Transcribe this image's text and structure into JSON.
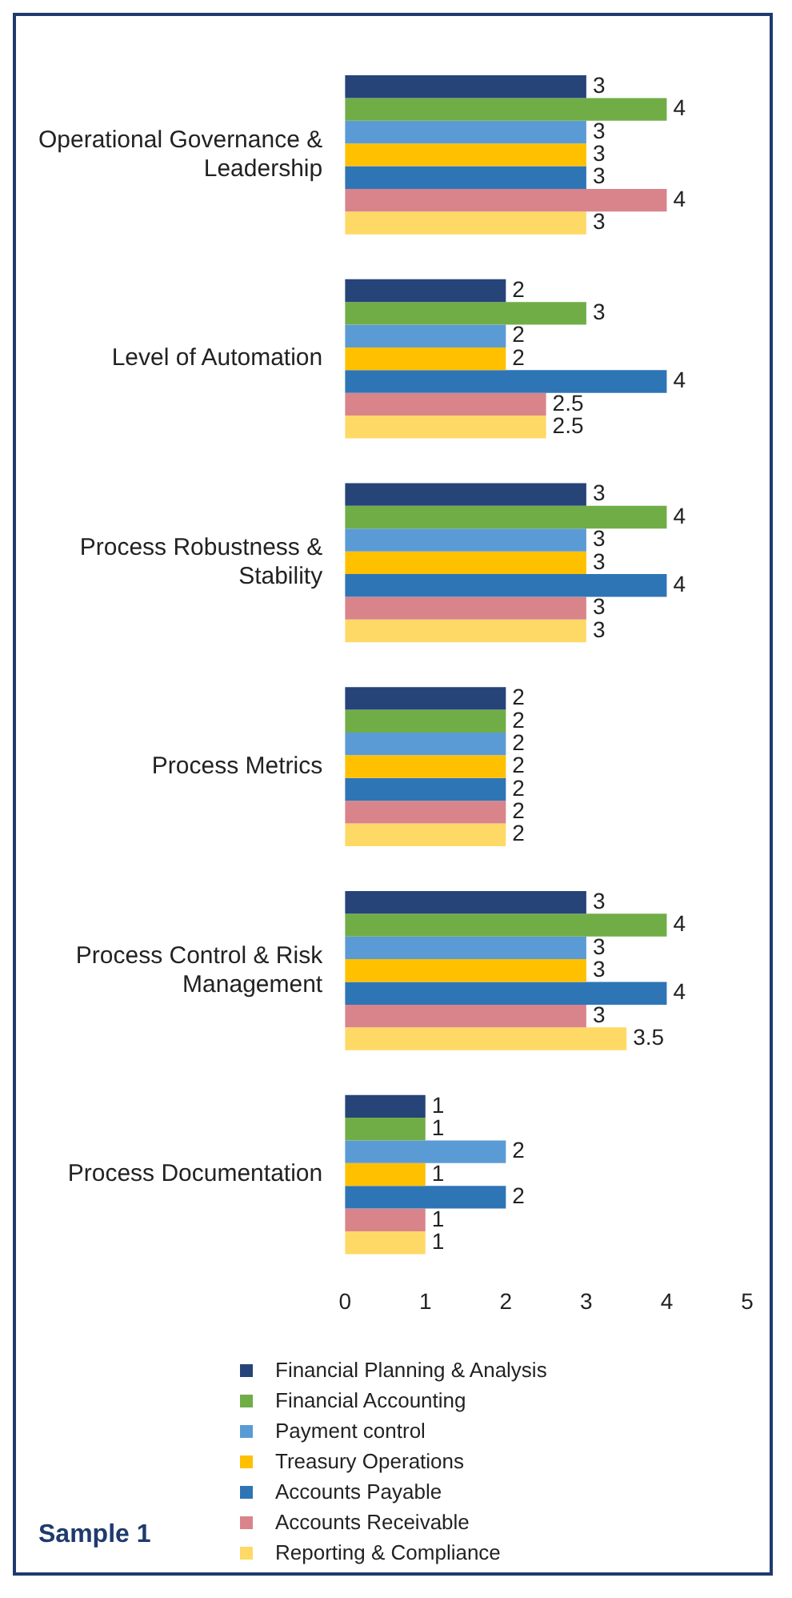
{
  "chart_data": {
    "type": "bar",
    "orientation": "horizontal",
    "categories": [
      "Operational Governance & Leadership",
      "Level of Automation",
      "Process Robustness & Stability",
      "Process Metrics",
      "Process Control & Risk Management",
      "Process Documentation"
    ],
    "series": [
      {
        "name": "Financial Planning & Analysis",
        "color": "#264478",
        "values": [
          3,
          2,
          3,
          2,
          3,
          1
        ]
      },
      {
        "name": "Financial Accounting",
        "color": "#70ad47",
        "values": [
          4,
          3,
          4,
          2,
          4,
          1
        ]
      },
      {
        "name": "Payment control",
        "color": "#5b9bd5",
        "values": [
          3,
          2,
          3,
          2,
          3,
          2
        ]
      },
      {
        "name": "Treasury Operations",
        "color": "#ffc000",
        "values": [
          3,
          2,
          3,
          2,
          3,
          1
        ]
      },
      {
        "name": "Accounts Payable",
        "color": "#2e75b6",
        "values": [
          3,
          4,
          4,
          2,
          4,
          2
        ]
      },
      {
        "name": "Accounts Receivable",
        "color": "#d9848b",
        "values": [
          4,
          2.5,
          3,
          2,
          3,
          1
        ]
      },
      {
        "name": "Reporting & Compliance",
        "color": "#ffd966",
        "values": [
          3,
          2.5,
          3,
          2,
          3.5,
          1
        ]
      }
    ],
    "xlim": [
      0,
      5
    ],
    "xticks": [
      0,
      1,
      2,
      3,
      4,
      5
    ],
    "grid": false,
    "legend": "bottom",
    "data_labels": true,
    "annotations": [
      "Sample 1"
    ]
  }
}
